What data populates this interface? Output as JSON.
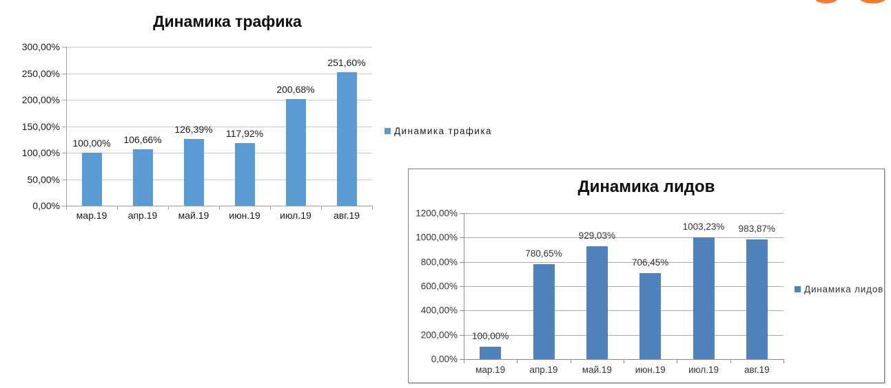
{
  "decorations": {
    "orange_color": "#ED7D31"
  },
  "chart_data": [
    {
      "type": "bar",
      "title": "Динамика трафика",
      "legend_label": "Динамика трафика",
      "legend_position": "right",
      "categories": [
        "мар.19",
        "апр.19",
        "май.19",
        "июн.19",
        "июл.19",
        "авг.19"
      ],
      "values": [
        100.0,
        106.66,
        126.39,
        117.92,
        200.68,
        251.6
      ],
      "value_labels": [
        "100,00%",
        "106,66%",
        "126,39%",
        "117,92%",
        "200,68%",
        "251,60%"
      ],
      "y_ticks": [
        "300,00%",
        "250,00%",
        "200,00%",
        "150,00%",
        "100,00%",
        "50,00%",
        "0,00%"
      ],
      "ylim": [
        0,
        300
      ],
      "xlabel": "",
      "ylabel": "",
      "grid": true,
      "bar_color": "#5B9BD5"
    },
    {
      "type": "bar",
      "title": "Динамика лидов",
      "legend_label": "Динамика лидов",
      "legend_position": "right",
      "categories": [
        "мар.19",
        "апр.19",
        "май.19",
        "июн.19",
        "июл.19",
        "авг.19"
      ],
      "values": [
        100.0,
        780.65,
        929.03,
        706.45,
        1003.23,
        983.87
      ],
      "value_labels": [
        "100,00%",
        "780,65%",
        "929,03%",
        "706,45%",
        "1003,23%",
        "983,87%"
      ],
      "y_ticks": [
        "1200,00%",
        "1000,00%",
        "800,00%",
        "600,00%",
        "400,00%",
        "200,00%",
        "0,00%"
      ],
      "ylim": [
        0,
        1200
      ],
      "xlabel": "",
      "ylabel": "",
      "grid": true,
      "bar_color": "#4F81BD"
    }
  ]
}
